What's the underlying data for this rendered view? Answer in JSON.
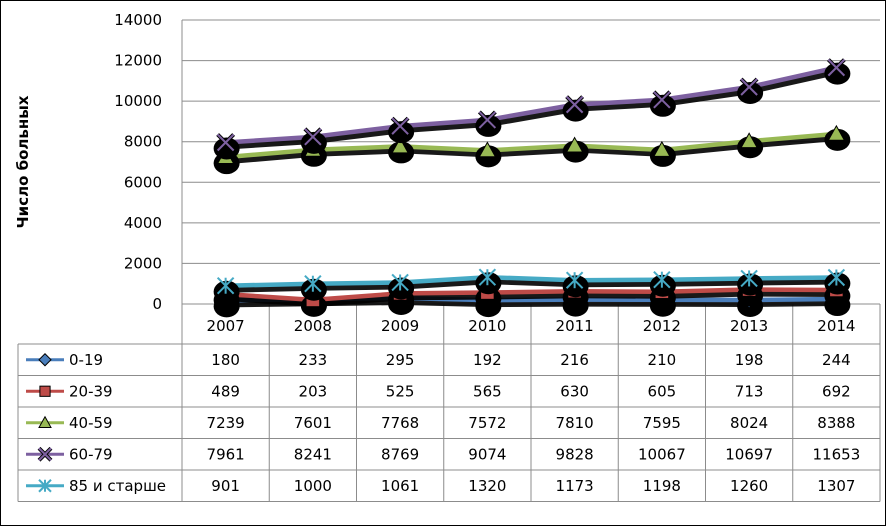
{
  "chart_data": {
    "type": "line",
    "ylabel": "Число больных",
    "ylim": [
      0,
      14000
    ],
    "yticks": [
      "0",
      "2000",
      "4000",
      "6000",
      "8000",
      "10000",
      "12000",
      "14000"
    ],
    "categories": [
      "2007",
      "2008",
      "2009",
      "2010",
      "2011",
      "2012",
      "2013",
      "2014"
    ],
    "grid": true,
    "legend": "data-table-left",
    "series": [
      {
        "name": "0-19",
        "color": "#4a7ebb",
        "marker": "diamond",
        "values": [
          180,
          233,
          295,
          192,
          216,
          210,
          198,
          244
        ]
      },
      {
        "name": "20-39",
        "color": "#be4b48",
        "marker": "square",
        "values": [
          489,
          203,
          525,
          565,
          630,
          605,
          713,
          692
        ]
      },
      {
        "name": "40-59",
        "color": "#98b954",
        "marker": "triangle",
        "values": [
          7239,
          7601,
          7768,
          7572,
          7810,
          7595,
          8024,
          8388
        ]
      },
      {
        "name": "60-79",
        "color": "#7d60a0",
        "marker": "x",
        "values": [
          7961,
          8241,
          8769,
          9074,
          9828,
          10067,
          10697,
          11653
        ]
      },
      {
        "name": "85 и старше",
        "color": "#46aac5",
        "marker": "star",
        "values": [
          901,
          1000,
          1061,
          1320,
          1173,
          1198,
          1260,
          1307
        ]
      }
    ]
  }
}
